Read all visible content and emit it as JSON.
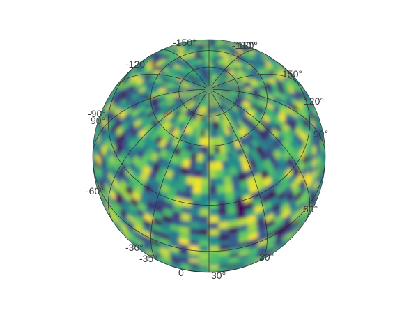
{
  "chart_data": {
    "type": "heatmap",
    "title": "",
    "projection": "orthographic",
    "colormap": "viridis",
    "colormap_stops": [
      "#440154",
      "#3b528b",
      "#21918c",
      "#5ec962",
      "#fde725"
    ],
    "gridline_color": "#2b2b2b",
    "value_range": [
      0,
      1
    ],
    "grid": true,
    "tick_labels": [
      "-150°",
      "-180°",
      "180°",
      "150°",
      "-120°",
      "120°",
      "-90°",
      "90°",
      "90°",
      "-60°",
      "60°",
      "-30°",
      "30°",
      "-35°",
      "0",
      "30°"
    ]
  }
}
